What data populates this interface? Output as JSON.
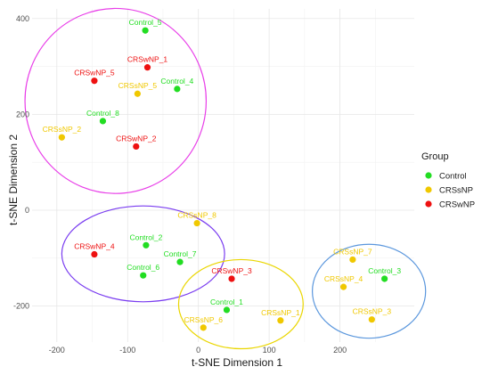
{
  "chart_data": {
    "type": "scatter",
    "title": "",
    "xlabel": "t-SNE Dimension 1",
    "ylabel": "t-SNE Dimension 2",
    "xlim": [
      -235,
      305
    ],
    "ylim": [
      -275,
      420
    ],
    "xticks": [
      -200,
      -100,
      0,
      100,
      200
    ],
    "yticks": [
      -200,
      0,
      200,
      400
    ],
    "xtick_labels": [
      "-200",
      "-100",
      "0",
      "100",
      "200"
    ],
    "ytick_labels": [
      "-200",
      "0",
      "200",
      "400"
    ],
    "grid": true,
    "legend": {
      "title": "Group",
      "position": "right",
      "entries": [
        {
          "name": "Control",
          "color": "#22dd22"
        },
        {
          "name": "CRSsNP",
          "color": "#f0c800"
        },
        {
          "name": "CRSwNP",
          "color": "#ee1111"
        }
      ]
    },
    "points": [
      {
        "label": "Control_5",
        "group": "Control",
        "x": -75,
        "y": 375
      },
      {
        "label": "CRSwNP_1",
        "group": "CRSwNP",
        "x": -72,
        "y": 298
      },
      {
        "label": "CRSwNP_5",
        "group": "CRSwNP",
        "x": -147,
        "y": 270
      },
      {
        "label": "CRSsNP_5",
        "group": "CRSsNP",
        "x": -86,
        "y": 243
      },
      {
        "label": "Control_4",
        "group": "Control",
        "x": -30,
        "y": 253
      },
      {
        "label": "Control_8",
        "group": "Control",
        "x": -135,
        "y": 186
      },
      {
        "label": "CRSsNP_2",
        "group": "CRSsNP",
        "x": -193,
        "y": 152
      },
      {
        "label": "CRSwNP_2",
        "group": "CRSwNP",
        "x": -88,
        "y": 133
      },
      {
        "label": "CRSsNP_8",
        "group": "CRSsNP",
        "x": -2,
        "y": -27
      },
      {
        "label": "Control_2",
        "group": "Control",
        "x": -74,
        "y": -73
      },
      {
        "label": "CRSwNP_4",
        "group": "CRSwNP",
        "x": -147,
        "y": -92
      },
      {
        "label": "Control_7",
        "group": "Control",
        "x": -26,
        "y": -108
      },
      {
        "label": "Control_6",
        "group": "Control",
        "x": -78,
        "y": -136
      },
      {
        "label": "CRSwNP_3",
        "group": "CRSwNP",
        "x": 47,
        "y": -143
      },
      {
        "label": "Control_1",
        "group": "Control",
        "x": 40,
        "y": -208
      },
      {
        "label": "CRSsNP_6",
        "group": "CRSsNP",
        "x": 7,
        "y": -245
      },
      {
        "label": "CRSsNP_1",
        "group": "CRSsNP",
        "x": 116,
        "y": -230
      },
      {
        "label": "CRSsNP_7",
        "group": "CRSsNP",
        "x": 218,
        "y": -103
      },
      {
        "label": "CRSsNP_4",
        "group": "CRSsNP",
        "x": 205,
        "y": -160
      },
      {
        "label": "Control_3",
        "group": "Control",
        "x": 263,
        "y": -143
      },
      {
        "label": "CRSsNP_3",
        "group": "CRSsNP",
        "x": 245,
        "y": -228
      }
    ],
    "ellipses": [
      {
        "color": "#e83ee8",
        "cx": -117,
        "cy": 228,
        "rx": 128,
        "ry": 193
      },
      {
        "color": "#7a3df0",
        "cx": -78,
        "cy": -91,
        "rx": 115,
        "ry": 100
      },
      {
        "color": "#ead600",
        "cx": 60,
        "cy": -196,
        "rx": 88,
        "ry": 93
      },
      {
        "color": "#5b97dd",
        "cx": 241,
        "cy": -169,
        "rx": 80,
        "ry": 98
      }
    ]
  }
}
